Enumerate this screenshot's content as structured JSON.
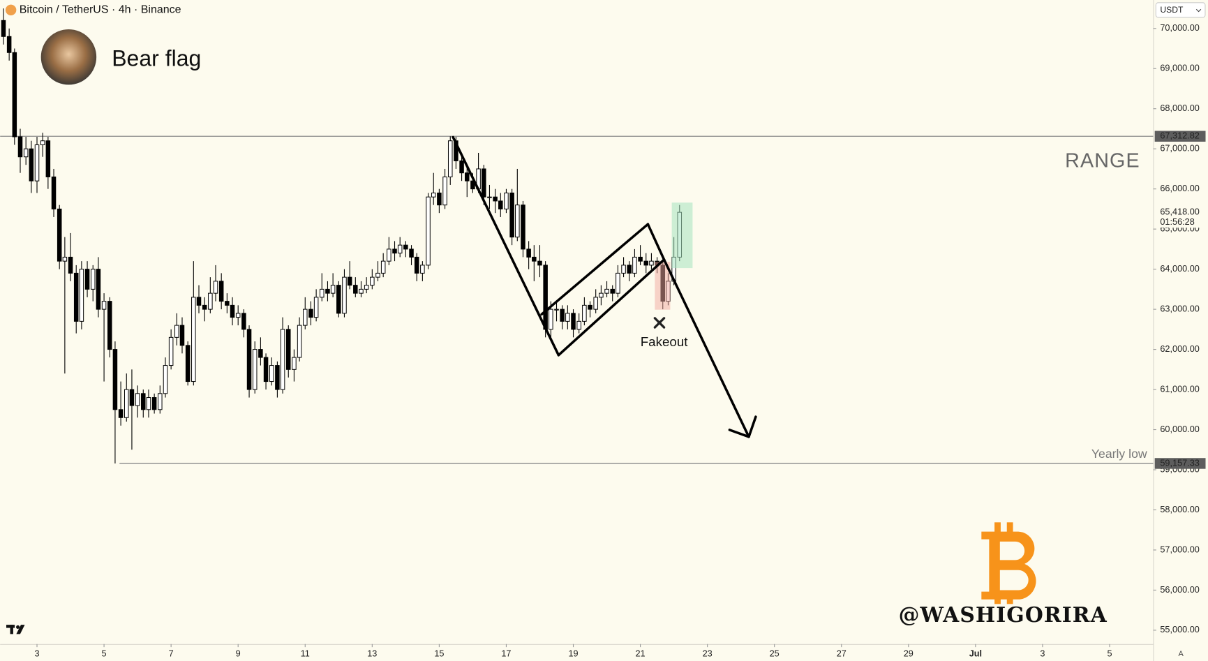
{
  "header": {
    "symbol": "Bitcoin / TetherUS · 4h · Binance",
    "currency": "USDT"
  },
  "chart_data": {
    "type": "candlestick",
    "title": "Bear flag",
    "up_color": "#ffffff",
    "down_color": "#000000",
    "candles": [
      [
        2,
        70200,
        70500,
        69600,
        69800
      ],
      [
        2.17,
        69800,
        70000,
        69200,
        69400
      ],
      [
        2.33,
        69400,
        69500,
        67100,
        67300
      ],
      [
        2.5,
        67300,
        67500,
        66400,
        66800
      ],
      [
        2.67,
        66800,
        67300,
        66600,
        67000
      ],
      [
        2.83,
        67000,
        67200,
        65900,
        66200
      ],
      [
        3,
        66200,
        67300,
        65900,
        67100
      ],
      [
        3.17,
        67100,
        67400,
        66800,
        67200
      ],
      [
        3.33,
        67200,
        67300,
        66000,
        66300
      ],
      [
        3.5,
        66300,
        66500,
        65300,
        65500
      ],
      [
        3.67,
        65500,
        65600,
        64000,
        64200
      ],
      [
        3.83,
        64200,
        64800,
        61400,
        64300
      ],
      [
        4,
        64300,
        64900,
        63700,
        63900
      ],
      [
        4.17,
        63900,
        64100,
        62400,
        62700
      ],
      [
        4.33,
        62700,
        64200,
        62500,
        64000
      ],
      [
        4.5,
        64000,
        64200,
        63300,
        63500
      ],
      [
        4.67,
        63500,
        64100,
        63200,
        64000
      ],
      [
        4.83,
        64000,
        64300,
        62800,
        63000
      ],
      [
        5,
        63000,
        63400,
        61200,
        63200
      ],
      [
        5.17,
        63200,
        63300,
        61800,
        62000
      ],
      [
        5.33,
        62000,
        62200,
        59157,
        60500
      ],
      [
        5.5,
        60500,
        61200,
        60100,
        60300
      ],
      [
        5.67,
        60300,
        61400,
        60200,
        61000
      ],
      [
        5.83,
        61000,
        61500,
        59500,
        60600
      ],
      [
        6,
        60600,
        61100,
        60300,
        60900
      ],
      [
        6.17,
        60900,
        61000,
        60300,
        60500
      ],
      [
        6.33,
        60500,
        61000,
        60300,
        60800
      ],
      [
        6.5,
        60800,
        60900,
        60400,
        60500
      ],
      [
        6.67,
        60500,
        61100,
        60400,
        60900
      ],
      [
        6.83,
        60900,
        61800,
        60800,
        61600
      ],
      [
        7,
        61600,
        62500,
        61500,
        62300
      ],
      [
        7.17,
        62300,
        62900,
        62100,
        62600
      ],
      [
        7.33,
        62600,
        62800,
        61900,
        62100
      ],
      [
        7.5,
        62100,
        62200,
        61100,
        61200
      ],
      [
        7.67,
        61200,
        64200,
        61100,
        63300
      ],
      [
        7.83,
        63300,
        63600,
        62900,
        63100
      ],
      [
        8,
        63100,
        63300,
        62700,
        63000
      ],
      [
        8.17,
        63000,
        63800,
        62900,
        63400
      ],
      [
        8.33,
        63400,
        64100,
        63200,
        63700
      ],
      [
        8.5,
        63700,
        63900,
        63000,
        63200
      ],
      [
        8.67,
        63200,
        63400,
        62900,
        63100
      ],
      [
        8.83,
        63100,
        63300,
        62600,
        62800
      ],
      [
        9,
        62800,
        63100,
        62600,
        62900
      ],
      [
        9.17,
        62900,
        63000,
        62300,
        62500
      ],
      [
        9.33,
        62500,
        62600,
        60800,
        61000
      ],
      [
        9.5,
        61000,
        62200,
        60900,
        62000
      ],
      [
        9.67,
        62000,
        62300,
        61600,
        61800
      ],
      [
        9.83,
        61800,
        61900,
        61000,
        61200
      ],
      [
        10,
        61200,
        61800,
        61100,
        61600
      ],
      [
        10.17,
        61600,
        61700,
        60800,
        61000
      ],
      [
        10.33,
        61000,
        62800,
        60900,
        62500
      ],
      [
        10.5,
        62500,
        62600,
        61300,
        61500
      ],
      [
        10.67,
        61500,
        62000,
        61200,
        61800
      ],
      [
        10.83,
        61800,
        62800,
        61700,
        62600
      ],
      [
        11,
        62600,
        63300,
        62500,
        63000
      ],
      [
        11.17,
        63000,
        63200,
        62600,
        62800
      ],
      [
        11.33,
        62800,
        63500,
        62700,
        63300
      ],
      [
        11.5,
        63300,
        63900,
        63200,
        63500
      ],
      [
        11.67,
        63500,
        63700,
        63200,
        63400
      ],
      [
        11.83,
        63400,
        63900,
        63300,
        63600
      ],
      [
        12,
        63600,
        63700,
        62800,
        62900
      ],
      [
        12.17,
        62900,
        64000,
        62800,
        63800
      ],
      [
        12.33,
        63800,
        64200,
        63500,
        63600
      ],
      [
        12.5,
        63600,
        63800,
        63300,
        63400
      ],
      [
        12.67,
        63400,
        63700,
        63300,
        63500
      ],
      [
        12.83,
        63500,
        63800,
        63400,
        63600
      ],
      [
        13,
        63600,
        64000,
        63500,
        63800
      ],
      [
        13.17,
        63800,
        64200,
        63700,
        63900
      ],
      [
        13.33,
        63900,
        64400,
        63800,
        64200
      ],
      [
        13.5,
        64200,
        64800,
        64100,
        64500
      ],
      [
        13.67,
        64500,
        64700,
        64200,
        64400
      ],
      [
        13.83,
        64400,
        64800,
        64300,
        64600
      ],
      [
        14,
        64600,
        64700,
        64300,
        64500
      ],
      [
        14.17,
        64500,
        64600,
        64100,
        64300
      ],
      [
        14.33,
        64300,
        64400,
        63700,
        63900
      ],
      [
        14.5,
        63900,
        64200,
        63700,
        64100
      ],
      [
        14.67,
        64100,
        65900,
        64000,
        65800
      ],
      [
        14.83,
        65800,
        66400,
        65600,
        65900
      ],
      [
        15,
        65900,
        66000,
        65400,
        65600
      ],
      [
        15.17,
        65600,
        66500,
        65500,
        66300
      ],
      [
        15.33,
        66300,
        67312,
        66100,
        67200
      ],
      [
        15.5,
        67200,
        67300,
        66500,
        66700
      ],
      [
        15.67,
        66700,
        66900,
        66200,
        66400
      ],
      [
        15.83,
        66400,
        66600,
        65800,
        66200
      ],
      [
        16,
        66200,
        66400,
        65900,
        66000
      ],
      [
        16.17,
        66000,
        66900,
        65900,
        66500
      ],
      [
        16.33,
        66500,
        66600,
        65600,
        65800
      ],
      [
        16.5,
        65800,
        66100,
        65500,
        65800
      ],
      [
        16.67,
        65800,
        66000,
        65400,
        65700
      ],
      [
        16.83,
        65700,
        65900,
        65300,
        65500
      ],
      [
        17,
        65500,
        66000,
        65400,
        65900
      ],
      [
        17.17,
        65900,
        66000,
        64600,
        64800
      ],
      [
        17.33,
        64800,
        66500,
        64700,
        65600
      ],
      [
        17.5,
        65600,
        65700,
        64300,
        64500
      ],
      [
        17.67,
        64500,
        64700,
        64000,
        64300
      ],
      [
        17.83,
        64300,
        64600,
        63700,
        64200
      ],
      [
        18,
        64200,
        64600,
        63800,
        64100
      ],
      [
        18.17,
        64100,
        64200,
        62300,
        62500
      ],
      [
        18.33,
        62500,
        63200,
        62300,
        63000
      ],
      [
        18.5,
        63000,
        63200,
        62700,
        63000
      ],
      [
        18.67,
        63000,
        63100,
        62500,
        62700
      ],
      [
        18.83,
        62700,
        63100,
        62500,
        62900
      ],
      [
        19,
        62900,
        63000,
        62300,
        62500
      ],
      [
        19.17,
        62500,
        62900,
        62400,
        62700
      ],
      [
        19.33,
        62700,
        63300,
        62600,
        63100
      ],
      [
        19.5,
        63100,
        63200,
        62800,
        63000
      ],
      [
        19.67,
        63000,
        63500,
        62900,
        63300
      ],
      [
        19.83,
        63300,
        63600,
        63100,
        63400
      ],
      [
        20,
        63400,
        63700,
        63300,
        63500
      ],
      [
        20.17,
        63500,
        63600,
        63200,
        63400
      ],
      [
        20.33,
        63400,
        64100,
        63300,
        63900
      ],
      [
        20.5,
        63900,
        64300,
        63800,
        64100
      ],
      [
        20.67,
        64100,
        64200,
        63700,
        63900
      ],
      [
        20.83,
        63900,
        64500,
        63800,
        64300
      ],
      [
        21,
        64300,
        64600,
        64100,
        64200
      ],
      [
        21.17,
        64200,
        64400,
        63900,
        64100
      ],
      [
        21.33,
        64100,
        64400,
        64000,
        64200
      ],
      [
        21.5,
        64200,
        64300,
        63900,
        64100
      ],
      [
        21.67,
        64100,
        64200,
        63000,
        63200
      ],
      [
        21.83,
        63200,
        63900,
        63100,
        63700
      ],
      [
        22,
        63700,
        64800,
        63600,
        64300
      ],
      [
        22.17,
        64300,
        65600,
        64200,
        65418
      ]
    ],
    "xlim": [
      1.9,
      36.3
    ],
    "ylim": [
      54655,
      70710
    ],
    "xticks": [
      3,
      5,
      7,
      9,
      11,
      13,
      15,
      17,
      19,
      21,
      23,
      25,
      27,
      29,
      {
        "value": 31,
        "label": "Jul"
      },
      {
        "value": 33,
        "label": "3"
      },
      {
        "value": 35,
        "label": "5"
      }
    ],
    "yticks": [
      {
        "value": 55000,
        "label": "55,000.00"
      },
      {
        "value": 56000,
        "label": "56,000.00"
      },
      {
        "value": 57000,
        "label": "57,000.00"
      },
      {
        "value": 58000,
        "label": "58,000.00"
      },
      {
        "value": 59000,
        "label": "59,000.00"
      },
      {
        "value": 60000,
        "label": "60,000.00"
      },
      {
        "value": 61000,
        "label": "61,000.00"
      },
      {
        "value": 62000,
        "label": "62,000.00"
      },
      {
        "value": 63000,
        "label": "63,000.00"
      },
      {
        "value": 64000,
        "label": "64,000.00"
      },
      {
        "value": 65000,
        "label": "65,000.00"
      },
      {
        "value": 66000,
        "label": "66,000.00"
      },
      {
        "value": 67000,
        "label": "67,000.00"
      },
      {
        "value": 68000,
        "label": "68,000.00"
      },
      {
        "value": 69000,
        "label": "69,000.00"
      },
      {
        "value": 70000,
        "label": "70,000.00"
      }
    ],
    "price_labels": [
      {
        "value": 67312.82,
        "label": "67,312.82"
      },
      {
        "value": 59157.33,
        "label": "59,157.33"
      },
      {
        "value": 65418,
        "label": "65,418.00"
      }
    ],
    "countdown": "01:56:28",
    "annotations": [
      "RANGE",
      "Yearly low",
      "Fakeout"
    ],
    "watermark": "@WASHIGORIRA"
  }
}
